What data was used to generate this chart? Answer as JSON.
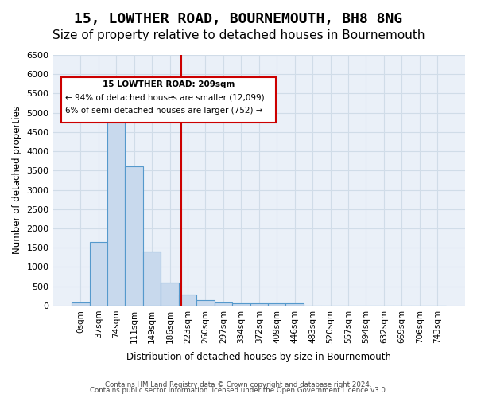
{
  "title": "15, LOWTHER ROAD, BOURNEMOUTH, BH8 8NG",
  "subtitle": "Size of property relative to detached houses in Bournemouth",
  "xlabel": "Distribution of detached houses by size in Bournemouth",
  "ylabel": "Number of detached properties",
  "bar_labels": [
    "0sqm",
    "37sqm",
    "74sqm",
    "111sqm",
    "149sqm",
    "186sqm",
    "223sqm",
    "260sqm",
    "297sqm",
    "334sqm",
    "372sqm",
    "409sqm",
    "446sqm",
    "483sqm",
    "520sqm",
    "557sqm",
    "594sqm",
    "632sqm",
    "669sqm",
    "706sqm",
    "743sqm"
  ],
  "bar_values": [
    75,
    1650,
    5050,
    3600,
    1400,
    600,
    280,
    140,
    90,
    60,
    55,
    50,
    55,
    0,
    0,
    0,
    0,
    0,
    0,
    0,
    0
  ],
  "bar_color": "#c8d9ed",
  "bar_edge_color": "#5599cc",
  "vline_x": 6.09,
  "vline_color": "#cc0000",
  "vline_label": "209sqm",
  "annotation_title": "15 LOWTHER ROAD: 209sqm",
  "annotation_line1": "← 94% of detached houses are smaller (12,099)",
  "annotation_line2": "6% of semi-detached houses are larger (752) →",
  "annotation_box_color": "#cc0000",
  "annotation_text_color": "#000000",
  "ylim": [
    0,
    6500
  ],
  "yticks": [
    0,
    500,
    1000,
    1500,
    2000,
    2500,
    3000,
    3500,
    4000,
    4500,
    5000,
    5500,
    6000,
    6500
  ],
  "grid_color": "#d0dce8",
  "background_color": "#eaf0f8",
  "title_fontsize": 13,
  "subtitle_fontsize": 11,
  "footer_line1": "Contains HM Land Registry data © Crown copyright and database right 2024.",
  "footer_line2": "Contains public sector information licensed under the Open Government Licence v3.0."
}
